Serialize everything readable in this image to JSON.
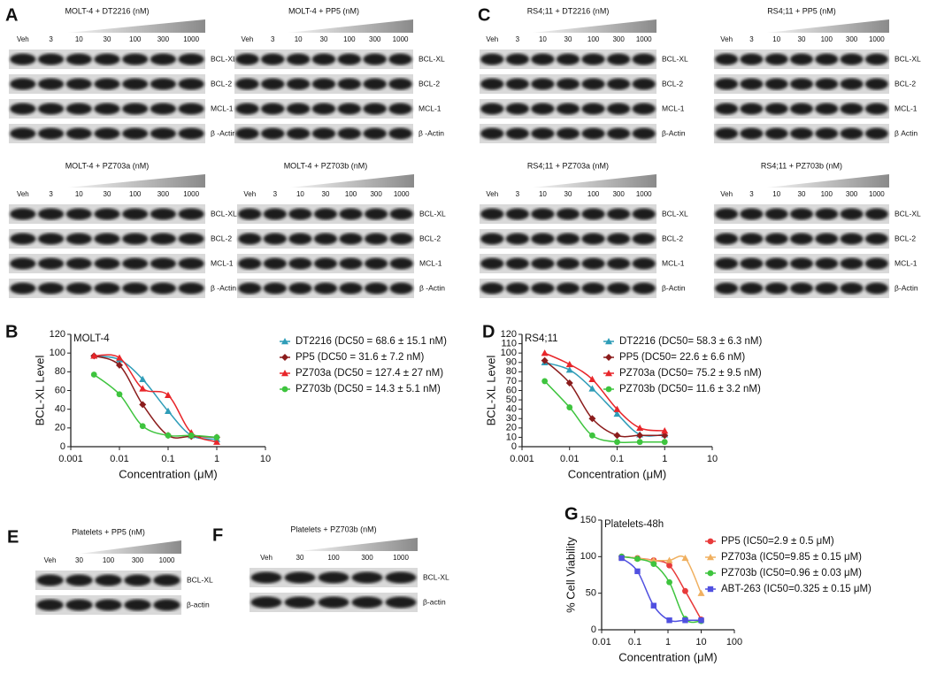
{
  "panel_labels": [
    "A",
    "B",
    "C",
    "D",
    "E",
    "F",
    "G"
  ],
  "blots": [
    {
      "title": "MOLT-4 + DT2216 (nM)",
      "lanes": [
        "Veh",
        "3",
        "10",
        "30",
        "100",
        "300",
        "1000"
      ],
      "rows": [
        "BCL-XL",
        "BCL-2",
        "MCL-1",
        "β -Actin"
      ]
    },
    {
      "title": "MOLT-4 + PP5 (nM)",
      "lanes": [
        "Veh",
        "3",
        "10",
        "30",
        "100",
        "300",
        "1000"
      ],
      "rows": [
        "BCL-XL",
        "BCL-2",
        "MCL-1",
        "β -Actin"
      ]
    },
    {
      "title": "MOLT-4 + PZ703a (nM)",
      "lanes": [
        "Veh",
        "3",
        "10",
        "30",
        "100",
        "300",
        "1000"
      ],
      "rows": [
        "BCL-XL",
        "BCL-2",
        "MCL-1",
        "β -Actin"
      ]
    },
    {
      "title": "MOLT-4 + PZ703b (nM)",
      "lanes": [
        "Veh",
        "3",
        "10",
        "30",
        "100",
        "300",
        "1000"
      ],
      "rows": [
        "BCL-XL",
        "BCL-2",
        "MCL-1",
        "β -Actin"
      ]
    },
    {
      "title": "RS4;11 + DT2216 (nM)",
      "lanes": [
        "Veh",
        "3",
        "10",
        "30",
        "100",
        "300",
        "1000"
      ],
      "rows": [
        "BCL-XL",
        "BCL-2",
        "MCL-1",
        "β-Actin"
      ]
    },
    {
      "title": "RS4;11 + PP5 (nM)",
      "lanes": [
        "Veh",
        "3",
        "10",
        "30",
        "100",
        "300",
        "1000"
      ],
      "rows": [
        "BCL-XL",
        "BCL-2",
        "MCL-1",
        "β Actin"
      ]
    },
    {
      "title": "RS4;11 + PZ703a (nM)",
      "lanes": [
        "Veh",
        "3",
        "10",
        "30",
        "100",
        "300",
        "1000"
      ],
      "rows": [
        "BCL-XL",
        "BCL-2",
        "MCL-1",
        "β-Actin"
      ]
    },
    {
      "title": "RS4;11 + PZ703b (nM)",
      "lanes": [
        "Veh",
        "3",
        "10",
        "30",
        "100",
        "300",
        "1000"
      ],
      "rows": [
        "BCL-XL",
        "BCL-2",
        "MCL-1",
        "β-Actin"
      ]
    },
    {
      "title": "Platelets + PP5 (nM)",
      "lanes": [
        "Veh",
        "30",
        "100",
        "300",
        "1000"
      ],
      "rows": [
        "BCL-XL",
        "β-actin"
      ]
    },
    {
      "title": "Platelets + PZ703b (nM)",
      "lanes": [
        "Veh",
        "30",
        "100",
        "300",
        "1000"
      ],
      "rows": [
        "BCL-XL",
        "β-actin"
      ]
    }
  ],
  "chart_data": [
    {
      "type": "line",
      "annotation": "MOLT-4",
      "x_label": "Concentration (μM)",
      "y_label": "BCL-XL Level",
      "log_x": true,
      "xlim": [
        0.001,
        10
      ],
      "xticks": [
        0.001,
        0.01,
        0.1,
        1,
        10
      ],
      "ylim": [
        0,
        120
      ],
      "yticks": [
        0,
        20,
        40,
        60,
        80,
        100,
        120
      ],
      "x": [
        0.003,
        0.01,
        0.03,
        0.1,
        0.3,
        1
      ],
      "series": [
        {
          "name": "DT2216 (DC50 = 68.6 ± 15.1 nM)",
          "color": "#2f9db8",
          "marker": "triangle",
          "values": [
            97,
            93,
            72,
            38,
            12,
            8
          ]
        },
        {
          "name": "PP5 (DC50 = 31.6 ± 7.2 nM)",
          "color": "#8b1c1c",
          "marker": "diamond",
          "values": [
            97,
            87,
            45,
            12,
            11,
            10
          ]
        },
        {
          "name": "PZ703a (DC50 = 127.4 ± 27 nM)",
          "color": "#e8262a",
          "marker": "triangle",
          "values": [
            97,
            95,
            62,
            55,
            15,
            5
          ]
        },
        {
          "name": "PZ703b (DC50 = 14.3 ± 5.1 nM)",
          "color": "#3ec43e",
          "marker": "circle",
          "values": [
            77,
            56,
            22,
            12,
            12,
            10
          ]
        }
      ]
    },
    {
      "type": "line",
      "annotation": "RS4;11",
      "x_label": "Concentration (μM)",
      "y_label": "BCL-XL Level",
      "log_x": true,
      "xlim": [
        0.001,
        10
      ],
      "xticks": [
        0.001,
        0.01,
        0.1,
        1,
        10
      ],
      "ylim": [
        0,
        120
      ],
      "yticks": [
        0,
        10,
        20,
        30,
        40,
        50,
        60,
        70,
        80,
        90,
        100,
        110,
        120
      ],
      "x": [
        0.003,
        0.01,
        0.03,
        0.1,
        0.3,
        1
      ],
      "series": [
        {
          "name": "DT2216 (DC50= 58.3 ± 6.3 nM)",
          "color": "#2f9db8",
          "marker": "triangle",
          "values": [
            90,
            82,
            62,
            35,
            13,
            13
          ]
        },
        {
          "name": "PP5 (DC50= 22.6 ± 6.6 nM)",
          "color": "#8b1c1c",
          "marker": "diamond",
          "values": [
            92,
            68,
            30,
            12,
            12,
            12
          ]
        },
        {
          "name": "PZ703a (DC50= 75.2 ± 9.5 nM)",
          "color": "#e8262a",
          "marker": "triangle",
          "values": [
            100,
            88,
            72,
            40,
            20,
            17
          ]
        },
        {
          "name": "PZ703b (DC50= 11.6 ± 3.2 nM)",
          "color": "#3ec43e",
          "marker": "circle",
          "values": [
            70,
            42,
            12,
            5,
            5,
            5
          ]
        }
      ]
    },
    {
      "type": "line",
      "annotation": "Platelets-48h",
      "x_label": "Concentration (μM)",
      "y_label": "% Cell Viability",
      "log_x": true,
      "xlim": [
        0.01,
        100
      ],
      "xticks": [
        0.01,
        0.1,
        1,
        10,
        100
      ],
      "ylim": [
        0,
        150
      ],
      "yticks": [
        0,
        50,
        100,
        150
      ],
      "x": [
        0.04,
        0.12,
        0.37,
        1.1,
        3.3,
        10
      ],
      "series": [
        {
          "name": "PP5 (IC50=2.9 ± 0.5 μM)",
          "color": "#e83a3a",
          "marker": "circle",
          "values": [
            100,
            98,
            95,
            88,
            53,
            14
          ]
        },
        {
          "name": "PZ703a (IC50=9.85 ± 0.15 μM)",
          "color": "#f0b060",
          "marker": "triangle",
          "values": [
            100,
            98,
            95,
            95,
            98,
            50
          ]
        },
        {
          "name": "PZ703b (IC50=0.96 ± 0.03 μM)",
          "color": "#3ec43e",
          "marker": "circle",
          "values": [
            100,
            97,
            90,
            65,
            15,
            12
          ]
        },
        {
          "name": "ABT-263 (IC50=0.325 ± 0.15 μM)",
          "color": "#5050e0",
          "marker": "square",
          "values": [
            98,
            80,
            33,
            13,
            13,
            13
          ]
        }
      ]
    }
  ]
}
